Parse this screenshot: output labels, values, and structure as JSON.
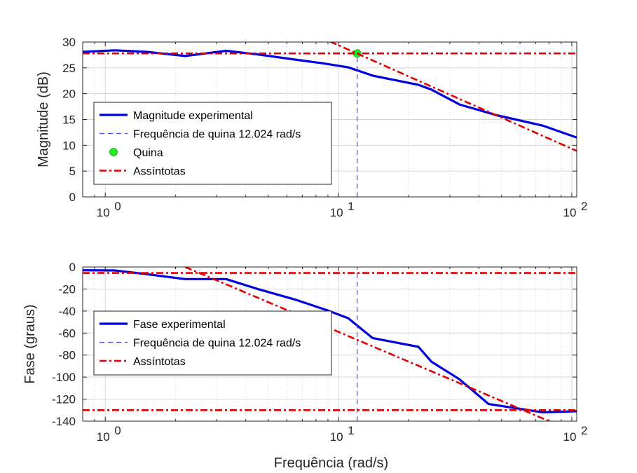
{
  "chart_data": [
    {
      "type": "line",
      "xscale": "log",
      "xlim": [
        0.8,
        105
      ],
      "ylim": [
        0,
        30
      ],
      "yticks": [
        0,
        5,
        10,
        15,
        20,
        25,
        30
      ],
      "ytick_labels": [
        "0",
        "5",
        "10",
        "15",
        "20",
        "25",
        "30"
      ],
      "xtick_labels": [
        {
          "base": "10",
          "exp": "0"
        },
        {
          "base": "10",
          "exp": "1"
        },
        {
          "base": "10",
          "exp": "2"
        }
      ],
      "ylabel": "Magnitude (dB)",
      "xlabel": "",
      "grid": true,
      "legend_position": "lower-left",
      "series": [
        {
          "name": "Magnitude experimental",
          "style": "solid",
          "color": "#0000dd",
          "x": [
            0.8,
            1.1,
            1.5,
            2.2,
            3.3,
            4.5,
            6.5,
            8.5,
            11,
            14,
            22,
            25,
            33,
            47,
            75,
            105
          ],
          "y": [
            28.1,
            28.4,
            28.1,
            27.3,
            28.3,
            27.6,
            26.6,
            25.9,
            25.1,
            23.5,
            21.7,
            20.8,
            17.9,
            15.9,
            13.8,
            11.5
          ]
        },
        {
          "name": "Frequência de quina 12.024 rad/s",
          "style": "dashed",
          "color": "#4a4af0",
          "x": [
            12.024,
            12.024
          ],
          "y": [
            0,
            27.8
          ]
        },
        {
          "name": "Quina",
          "style": "marker",
          "color": "#22ee22",
          "x": [
            12.024
          ],
          "y": [
            27.8
          ]
        },
        {
          "name": "Assíntotas",
          "style": "dashdot",
          "color": "#e00000",
          "x": [
            0.8,
            105
          ],
          "y": [
            27.8,
            27.8
          ]
        },
        {
          "name": "",
          "style": "dashdot",
          "color": "#e00000",
          "x": [
            9.2,
            105
          ],
          "y": [
            30.1,
            8.9
          ]
        }
      ],
      "legend": [
        {
          "label": "Magnitude experimental",
          "style": "solid",
          "color": "#0000dd"
        },
        {
          "label": "Frequência de quina 12.024 rad/s",
          "style": "dashed",
          "color": "#4a4af0"
        },
        {
          "label": "Quina",
          "style": "marker",
          "color": "#22ee22"
        },
        {
          "label": "Assíntotas",
          "style": "dashdot",
          "color": "#e00000"
        }
      ]
    },
    {
      "type": "line",
      "xscale": "log",
      "xlim": [
        0.8,
        105
      ],
      "ylim": [
        -140,
        0
      ],
      "yticks": [
        -140,
        -120,
        -100,
        -80,
        -60,
        -40,
        -20,
        0
      ],
      "ytick_labels": [
        "-140",
        "-120",
        "-100",
        "-80",
        "-60",
        "-40",
        "-20",
        "0"
      ],
      "xtick_labels": [
        {
          "base": "10",
          "exp": "0"
        },
        {
          "base": "10",
          "exp": "1"
        },
        {
          "base": "10",
          "exp": "2"
        }
      ],
      "ylabel": "Fase (graus)",
      "xlabel": "Frequência (rad/s)",
      "grid": true,
      "legend_position": "center-left",
      "series": [
        {
          "name": "Fase experimental",
          "style": "solid",
          "color": "#0000dd",
          "x": [
            0.8,
            1.1,
            1.5,
            2.2,
            3.3,
            4.5,
            6.5,
            9,
            11,
            14,
            22,
            25,
            33,
            44,
            75,
            105
          ],
          "y": [
            -3,
            -3.2,
            -6.5,
            -11,
            -11,
            -20,
            -29.5,
            -39.5,
            -46.5,
            -64.5,
            -72.5,
            -86,
            -102,
            -124.5,
            -132,
            -131
          ]
        },
        {
          "name": "Frequência de quina 12.024 rad/s",
          "style": "dashed",
          "color": "#4a4af0",
          "x": [
            12.024,
            12.024
          ],
          "y": [
            -140,
            0
          ]
        },
        {
          "name": "Assíntotas",
          "style": "dashdot",
          "color": "#e00000",
          "x": [
            0.8,
            105
          ],
          "y": [
            -5.5,
            -5.5
          ]
        },
        {
          "name": "",
          "style": "dashdot",
          "color": "#e00000",
          "x": [
            0.8,
            105
          ],
          "y": [
            -130,
            -130
          ]
        },
        {
          "name": "",
          "style": "dashdot",
          "color": "#e00000",
          "x": [
            2.2,
            80
          ],
          "y": [
            0,
            -140
          ]
        }
      ],
      "legend": [
        {
          "label": "Fase experimental",
          "style": "solid",
          "color": "#0000dd"
        },
        {
          "label": "Frequência de quina 12.024 rad/s",
          "style": "dashed",
          "color": "#4a4af0"
        },
        {
          "label": "Assíntotas",
          "style": "dashdot",
          "color": "#e00000"
        }
      ]
    }
  ]
}
